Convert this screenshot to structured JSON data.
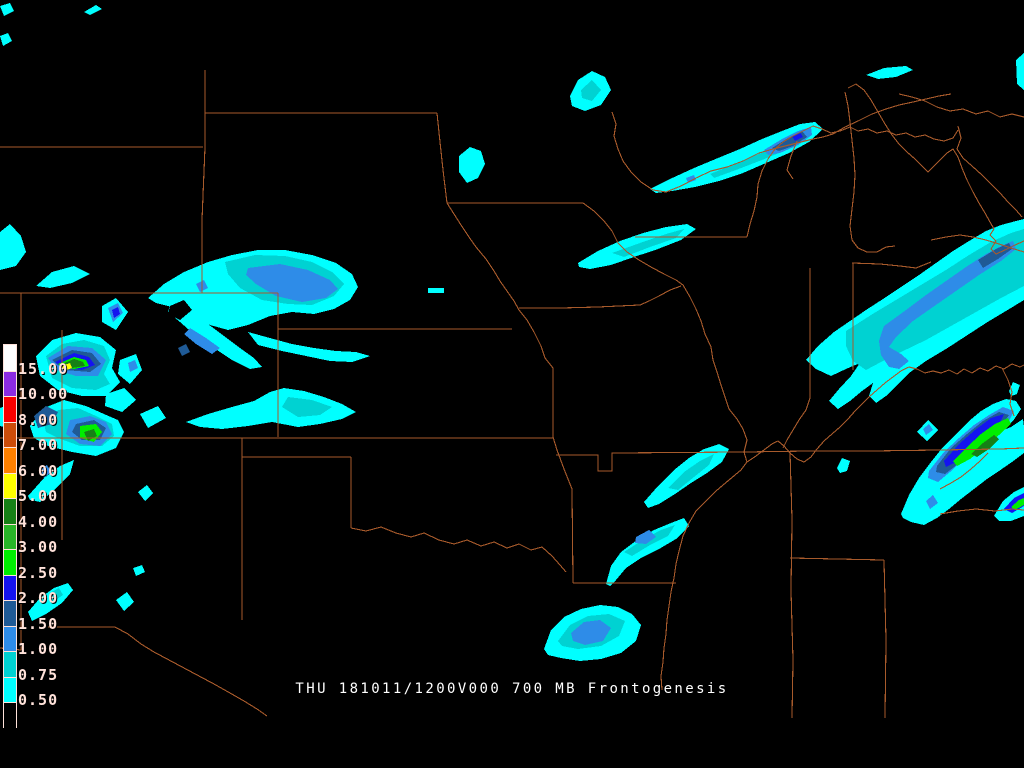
{
  "title": {
    "text": "THU 181011/1200V000 700 MB Frontogenesis"
  },
  "map": {
    "background_color": "#000000",
    "border_color": "#A75A2B"
  },
  "palette": {
    "level_0_50": "#00FFFF",
    "level_0_75": "#00D2D2",
    "level_1_00": "#2E8CE8",
    "level_1_50": "#1F5A96",
    "level_2_00": "#1414F0",
    "level_2_50": "#00EE00",
    "level_3_00": "#28B428",
    "level_4_00": "#168016",
    "level_5_00": "#FFFF00",
    "level_6_00": "#FF8000",
    "level_7_00": "#CC4C0A",
    "level_8_00": "#FA0000",
    "level_10_00": "#8B2BE2",
    "level_15_00": "#FFFFFF"
  },
  "legend": {
    "outline_color": "#FFE2DA",
    "text_color": "#FFE2DA",
    "labels": [
      "15.00",
      "10.00",
      "8.00",
      "7.00",
      "6.00",
      "5.00",
      "4.00",
      "3.00",
      "2.50",
      "2.00",
      "1.50",
      "1.00",
      "0.75",
      "0.50"
    ],
    "cell_colors": [
      "#FFFFFF",
      "#8B2BE2",
      "#FA0000",
      "#CC4C0A",
      "#FF8000",
      "#FFFF00",
      "#168016",
      "#28B428",
      "#00EE00",
      "#1414F0",
      "#1F5A96",
      "#2E8CE8",
      "#00D2D2",
      "#00FFFF",
      "#000000"
    ]
  }
}
